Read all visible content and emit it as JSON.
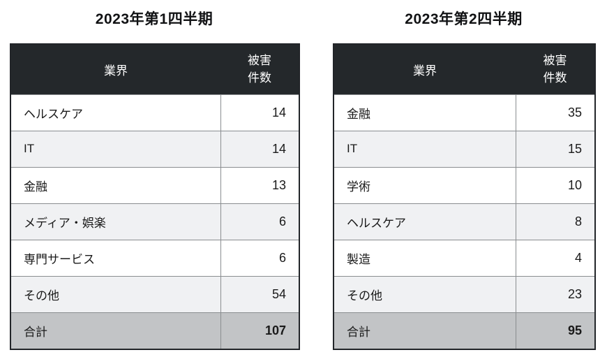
{
  "colors": {
    "page_background": "#ffffff",
    "header_background": "#24282b",
    "header_text": "#ffffff",
    "row_background": "#ffffff",
    "row_alt_background": "#f0f1f3",
    "total_row_background": "#c2c4c6",
    "outer_border": "#222529",
    "inner_border": "#8a8d90",
    "body_text": "#1a1a1a"
  },
  "chart_data": [
    {
      "type": "table",
      "title": "2023年第1四半期",
      "columns": [
        "業界",
        "被害件数"
      ],
      "rows": [
        [
          "ヘルスケア",
          "14"
        ],
        [
          "IT",
          "14"
        ],
        [
          "金融",
          "13"
        ],
        [
          "メディア・娯楽",
          "6"
        ],
        [
          "専門サービス",
          "6"
        ],
        [
          "その他",
          "54"
        ]
      ],
      "total": [
        "合計",
        "107"
      ]
    },
    {
      "type": "table",
      "title": "2023年第2四半期",
      "columns": [
        "業界",
        "被害件数"
      ],
      "rows": [
        [
          "金融",
          "35"
        ],
        [
          "IT",
          "15"
        ],
        [
          "学術",
          "10"
        ],
        [
          "ヘルスケア",
          "8"
        ],
        [
          "製造",
          "4"
        ],
        [
          "その他",
          "23"
        ]
      ],
      "total": [
        "合計",
        "95"
      ]
    }
  ]
}
